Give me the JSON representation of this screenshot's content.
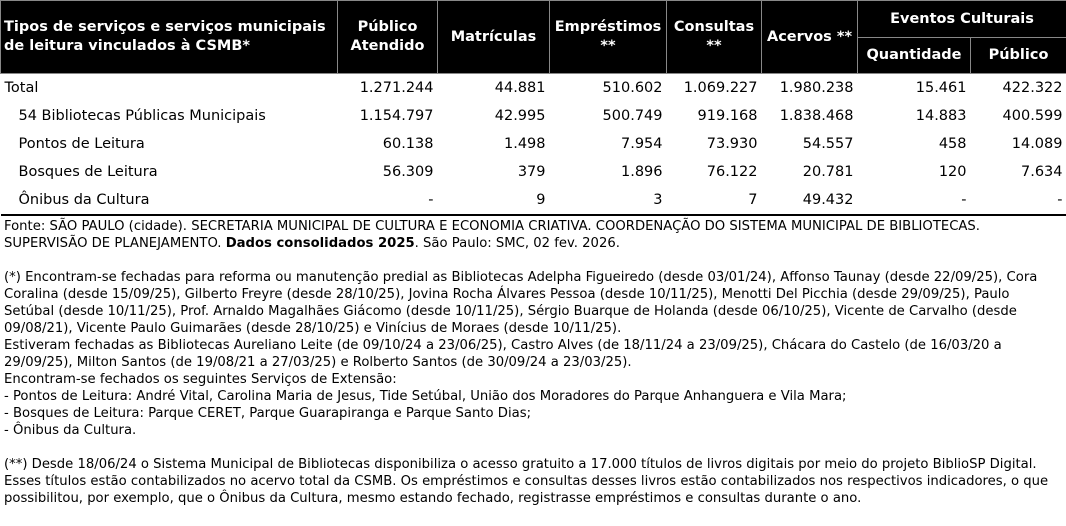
{
  "header": {
    "service_col": "Tipos de serviços e serviços municipais de leitura vinculados à CSMB*",
    "publico": "Público Atendido",
    "matriculas": "Matrículas",
    "emprestimos": "Empréstimos **",
    "consultas": "Consultas **",
    "acervos": "Acervos **",
    "eventos": "Eventos Culturais",
    "quantidade": "Quantidade",
    "publico_eventos": "Público"
  },
  "rows": [
    {
      "label": "Total",
      "values": [
        "1.271.244",
        "44.881",
        "510.602",
        "1.069.227",
        "1.980.238",
        "15.461",
        "422.322"
      ]
    },
    {
      "label": "54 Bibliotecas Públicas Municipais",
      "values": [
        "1.154.797",
        "42.995",
        "500.749",
        "919.168",
        "1.838.468",
        "14.883",
        "400.599"
      ]
    },
    {
      "label": "Pontos de Leitura",
      "values": [
        "60.138",
        "1.498",
        "7.954",
        "73.930",
        "54.557",
        "458",
        "14.089"
      ]
    },
    {
      "label": "Bosques de Leitura",
      "values": [
        "56.309",
        "379",
        "1.896",
        "76.122",
        "20.781",
        "120",
        "7.634"
      ]
    },
    {
      "label": "Ônibus da Cultura",
      "values": [
        "-",
        "9",
        "3",
        "7",
        "49.432",
        "-",
        "-"
      ]
    }
  ],
  "notes": {
    "source_a": "Fonte: SÃO PAULO (cidade). SECRETARIA MUNICIPAL DE CULTURA E ECONOMIA CRIATIVA. COORDENAÇÃO DO SISTEMA MUNICIPAL DE BIBLIOTECAS. SUPERVISÃO DE PLANEJAMENTO. ",
    "source_bold": "Dados consolidados 2025",
    "source_b": ". São Paulo: SMC, 02 fev. 2026.",
    "closed": "(*) Encontram-se fechadas para reforma ou manutenção predial as Bibliotecas Adelpha Figueiredo (desde 03/01/24), Affonso Taunay (desde 22/09/25), Cora Coralina (desde 15/09/25), Gilberto Freyre (desde 28/10/25), Jovina Rocha Álvares Pessoa (desde 10/11/25), Menotti Del Picchia (desde 29/09/25), Paulo Setúbal (desde 10/11/25), Prof. Arnaldo Magalhães Giácomo (desde 10/11/25), Sérgio Buarque de Holanda (desde 06/10/25), Vicente de Carvalho (desde 09/08/21), Vicente Paulo Guimarães (desde 28/10/25) e Vinícius de Moraes (desde 10/11/25).",
    "were_closed": "Estiveram fechadas as Bibliotecas Aureliano Leite (de 09/10/24 a 23/06/25), Castro Alves (de 18/11/24 a 23/09/25), Chácara do Castelo (de 16/03/20 a 29/09/25), Milton Santos (de 19/08/21 a 27/03/25) e Rolberto Santos (de 30/09/24 a 23/03/25).",
    "extension_title": "Encontram-se fechados os seguintes Serviços de Extensão:",
    "extension_items": [
      "- Pontos de Leitura: André Vital, Carolina Maria de Jesus, Tide Setúbal, União dos Moradores do Parque Anhanguera e Vila Mara;",
      "- Bosques de Leitura: Parque CERET, Parque Guarapiranga e Parque Santo Dias;",
      "- Ônibus da Cultura."
    ],
    "digital": "(**) Desde 18/06/24 o Sistema Municipal de Bibliotecas disponibiliza o acesso gratuito a 17.000 títulos de livros digitais por meio do projeto BiblioSP Digital. Esses títulos estão contabilizados no acervo total da CSMB. Os empréstimos e consultas desses livros estão contabilizados nos respectivos indicadores, o que possibilitou, por exemplo, que o Ônibus da Cultura, mesmo estando fechado, registrasse empréstimos e consultas durante o ano."
  }
}
